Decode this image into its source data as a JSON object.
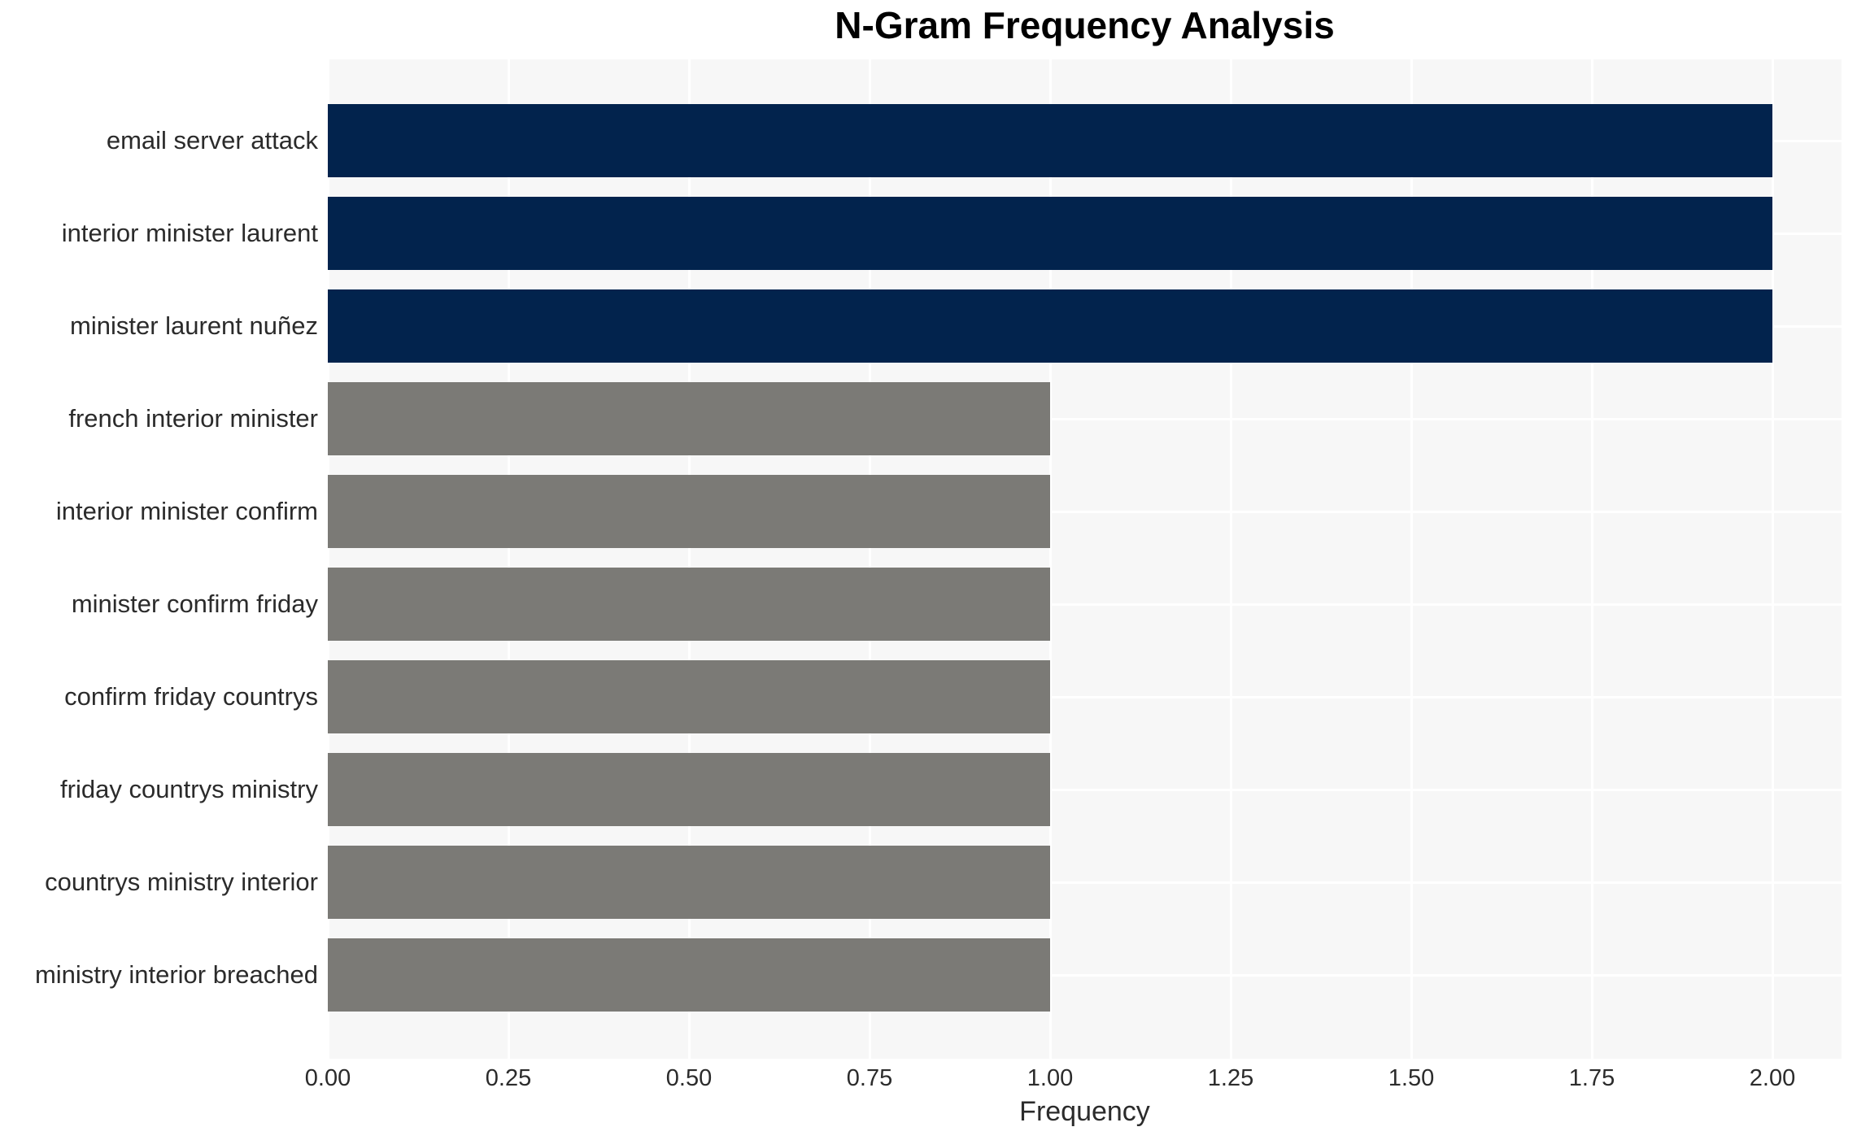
{
  "chart_data": {
    "type": "bar",
    "orientation": "horizontal",
    "title": "N-Gram Frequency Analysis",
    "xlabel": "Frequency",
    "ylabel": "",
    "categories": [
      "email server attack",
      "interior minister laurent",
      "minister laurent nuñez",
      "french interior minister",
      "interior minister confirm",
      "minister confirm friday",
      "confirm friday countrys",
      "friday countrys ministry",
      "countrys ministry interior",
      "ministry interior breached"
    ],
    "values": [
      2.0,
      2.0,
      2.0,
      1.0,
      1.0,
      1.0,
      1.0,
      1.0,
      1.0,
      1.0
    ],
    "bar_colors": [
      "#02234d",
      "#02234d",
      "#02234d",
      "#7b7a76",
      "#7b7a76",
      "#7b7a76",
      "#7b7a76",
      "#7b7a76",
      "#7b7a76",
      "#7b7a76"
    ],
    "xticks": {
      "values": [
        0.0,
        0.25,
        0.5,
        0.75,
        1.0,
        1.25,
        1.5,
        1.75,
        2.0
      ],
      "labels": [
        "0.00",
        "0.25",
        "0.50",
        "0.75",
        "1.00",
        "1.25",
        "1.50",
        "1.75",
        "2.00"
      ]
    },
    "xlim": [
      0,
      2.096
    ],
    "grid": true,
    "legend": "none",
    "colors": {
      "plot_background": "#f7f7f7",
      "page_background": "#ffffff",
      "gridline": "#ffffff",
      "bar_primary": "#02234d",
      "bar_secondary": "#7b7a76",
      "title_text": "#000000",
      "axis_text": "#2b2b2b"
    }
  }
}
